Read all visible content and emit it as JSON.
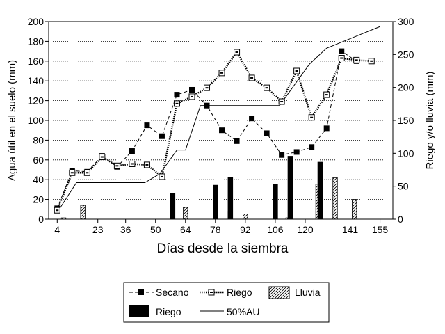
{
  "chart_data": {
    "type": "bar+line",
    "xlabel": "Días desde la siembra",
    "ylabel_left": "Agua útil en el suelo (mm)",
    "ylabel_right": "Riego y/o lluvia (mm)",
    "xlim": [
      0,
      161
    ],
    "xticks": [
      4,
      23,
      36,
      50,
      64,
      78,
      92,
      106,
      120,
      141,
      155
    ],
    "ylim_left": [
      0,
      200
    ],
    "yticks_left": [
      0,
      20,
      40,
      60,
      80,
      100,
      120,
      140,
      160,
      180,
      200
    ],
    "ylim_right": [
      0,
      300
    ],
    "yticks_right": [
      0,
      50,
      100,
      150,
      200,
      250,
      300
    ],
    "grid": true,
    "legend_position": "bottom",
    "series": [
      {
        "name": "Secano",
        "kind": "line",
        "axis": "left",
        "style": "dashed-filled-square",
        "x": [
          4,
          11,
          18,
          25,
          32,
          39,
          46,
          53,
          60,
          67,
          74,
          81,
          88,
          95,
          102,
          109,
          116,
          123,
          130,
          137,
          144
        ],
        "y": [
          11,
          49,
          48,
          64,
          53,
          69,
          95,
          84,
          126,
          131,
          115,
          90,
          79,
          102,
          87,
          65,
          68,
          73,
          92,
          170,
          160
        ]
      },
      {
        "name": "Riego",
        "kind": "line",
        "axis": "left",
        "style": "dotted-open-square",
        "x": [
          4,
          11,
          18,
          25,
          32,
          39,
          46,
          53,
          60,
          67,
          74,
          81,
          88,
          95,
          102,
          109,
          116,
          123,
          130,
          137,
          144,
          151
        ],
        "y": [
          9,
          47,
          47,
          63,
          54,
          56,
          55,
          43,
          117,
          124,
          133,
          148,
          169,
          143,
          133,
          119,
          150,
          103,
          126,
          163,
          161,
          160
        ]
      },
      {
        "name": "50%AU",
        "kind": "line",
        "axis": "left",
        "style": "thin-solid",
        "x": [
          4,
          13,
          24,
          45,
          52,
          60,
          64,
          71,
          90,
          108,
          122,
          130,
          155
        ],
        "y": [
          7,
          37,
          37,
          37,
          46,
          70,
          70,
          115,
          115,
          115,
          157,
          173,
          195
        ]
      },
      {
        "name": "Lluvia",
        "kind": "bar",
        "axis": "right",
        "style": "hatched",
        "x": [
          7,
          16,
          64,
          85,
          92,
          112,
          126,
          134,
          143
        ],
        "y": [
          2,
          21,
          18,
          12,
          8,
          2,
          53,
          63,
          30
        ]
      },
      {
        "name": "Riego",
        "kind": "bar",
        "axis": "right",
        "style": "solid-black",
        "x": [
          58,
          78,
          85,
          106,
          113,
          127
        ],
        "y": [
          40,
          52,
          64,
          53,
          96,
          87
        ]
      }
    ]
  },
  "legend": {
    "items": [
      {
        "label": "Secano",
        "symbol": "dashed-filled-square"
      },
      {
        "label": "Riego",
        "symbol": "dotted-open-square"
      },
      {
        "label": "Lluvia",
        "symbol": "hatched-box"
      },
      {
        "label": "Riego",
        "symbol": "black-box"
      },
      {
        "label": "50%AU",
        "symbol": "thin-line"
      }
    ]
  }
}
